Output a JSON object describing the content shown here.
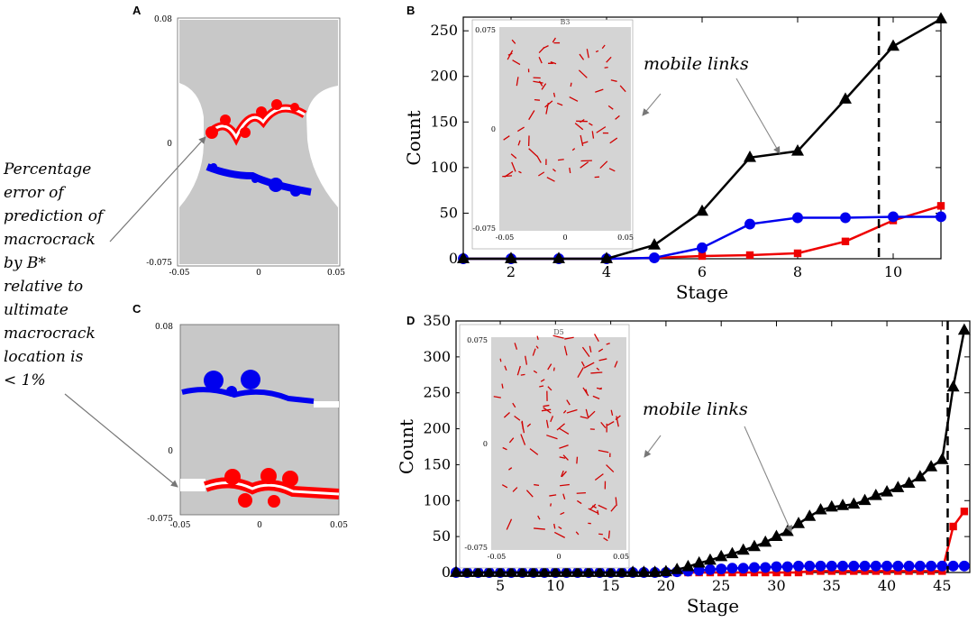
{
  "panel_labels": {
    "A": "A",
    "B": "B",
    "C": "C",
    "D": "D"
  },
  "annotation": {
    "lines": [
      "Percentage",
      "error of",
      "prediction of",
      "macrocrack",
      "by B*",
      "relative to",
      "ultimate",
      "macrocrack",
      "location is",
      "< 1%"
    ]
  },
  "specimen": {
    "colors": {
      "background": "#c8c8c8",
      "top_crack": "#ff0000",
      "bottom_crack": "#0000ee",
      "gap": "#ffffff"
    },
    "panel_a": {
      "y_ticks": [
        "0.08",
        "0",
        "-0.075"
      ],
      "x_ticks": [
        "-0.05",
        "0",
        "0.05"
      ],
      "red_crack": {
        "color": "#ff0000"
      },
      "blue_crack": {
        "color": "#0000ee"
      }
    },
    "panel_c": {
      "y_ticks": [
        "0.08",
        "0",
        "-0.075"
      ],
      "x_ticks": [
        "-0.05",
        "0",
        "0.05"
      ],
      "blue_crack": {
        "color": "#0000ee"
      },
      "red_crack": {
        "color": "#ff0000"
      }
    }
  },
  "chart_data": [
    {
      "id": "B",
      "type": "line",
      "xlabel": "Stage",
      "ylabel": "Count",
      "xlim": [
        1,
        11
      ],
      "ylim": [
        0,
        265
      ],
      "x_ticks": [
        2,
        4,
        6,
        8,
        10
      ],
      "y_ticks": [
        0,
        50,
        100,
        150,
        200,
        250
      ],
      "vline": {
        "x": 9.7,
        "style": "dashed"
      },
      "annotation": "mobile links",
      "inset": {
        "title": "B3",
        "y_ticks": [
          "0.075",
          "0",
          "-0.075"
        ],
        "x_ticks": [
          "-0.05",
          "0",
          "0.05"
        ]
      },
      "x": [
        1,
        2,
        3,
        4,
        5,
        6,
        7,
        8,
        9,
        10,
        11
      ],
      "series": [
        {
          "name": "mobile links",
          "color": "#000000",
          "marker": "triangle",
          "values": [
            0,
            0,
            0,
            0,
            15,
            52,
            111,
            118,
            175,
            233,
            263
          ]
        },
        {
          "name": "blue",
          "color": "#0000ee",
          "marker": "circle",
          "values": [
            0,
            0,
            0,
            0,
            1,
            12,
            38,
            45,
            45,
            46,
            46
          ]
        },
        {
          "name": "red",
          "color": "#ee0000",
          "marker": "square",
          "values": [
            0,
            0,
            0,
            0,
            1,
            3,
            4,
            6,
            19,
            42,
            58
          ]
        }
      ]
    },
    {
      "id": "D",
      "type": "line",
      "xlabel": "Stage",
      "ylabel": "Count",
      "xlim": [
        1,
        47.5
      ],
      "ylim": [
        0,
        350
      ],
      "x_ticks": [
        5,
        10,
        15,
        20,
        25,
        30,
        35,
        40,
        45
      ],
      "y_ticks": [
        0,
        50,
        100,
        150,
        200,
        250,
        300,
        350
      ],
      "vline": {
        "x": 45.5,
        "style": "dashed"
      },
      "annotation": "mobile links",
      "inset": {
        "title": "D5",
        "y_ticks": [
          "0.075",
          "0",
          "-0.075"
        ],
        "x_ticks": [
          "-0.05",
          "0",
          "0.05"
        ]
      },
      "x": [
        1,
        2,
        3,
        4,
        5,
        6,
        7,
        8,
        9,
        10,
        11,
        12,
        13,
        14,
        15,
        16,
        17,
        18,
        19,
        20,
        21,
        22,
        23,
        24,
        25,
        26,
        27,
        28,
        29,
        30,
        31,
        32,
        33,
        34,
        35,
        36,
        37,
        38,
        39,
        40,
        41,
        42,
        43,
        44,
        45,
        46,
        47
      ],
      "series": [
        {
          "name": "mobile links",
          "color": "#000000",
          "marker": "triangle",
          "values": [
            0,
            0,
            0,
            0,
            0,
            0,
            0,
            0,
            0,
            0,
            0,
            0,
            0,
            0,
            0,
            0,
            0,
            0,
            0,
            1,
            4,
            8,
            13,
            17,
            22,
            26,
            31,
            36,
            42,
            50,
            57,
            68,
            78,
            87,
            91,
            93,
            95,
            100,
            107,
            112,
            118,
            124,
            133,
            147,
            157,
            258,
            337
          ]
        },
        {
          "name": "blue",
          "color": "#0000ee",
          "marker": "circle",
          "values": [
            0,
            0,
            0,
            0,
            0,
            0,
            0,
            0,
            0,
            0,
            0,
            0,
            0,
            0,
            0,
            0,
            0,
            0,
            0,
            0,
            1,
            2,
            3,
            4,
            5,
            6,
            6,
            7,
            7,
            8,
            8,
            9,
            9,
            9,
            9,
            9,
            9,
            9,
            9,
            9,
            9,
            9,
            9,
            9,
            9,
            9,
            9
          ]
        },
        {
          "name": "red",
          "color": "#ee0000",
          "marker": "square",
          "values": [
            0,
            0,
            0,
            0,
            0,
            0,
            0,
            0,
            0,
            0,
            0,
            0,
            0,
            0,
            0,
            0,
            0,
            0,
            0,
            0,
            0,
            0,
            0,
            0,
            0,
            0,
            0,
            0,
            0,
            0,
            0,
            0,
            2,
            2,
            2,
            2,
            2,
            2,
            2,
            2,
            2,
            2,
            2,
            2,
            2,
            64,
            85
          ]
        }
      ]
    }
  ]
}
